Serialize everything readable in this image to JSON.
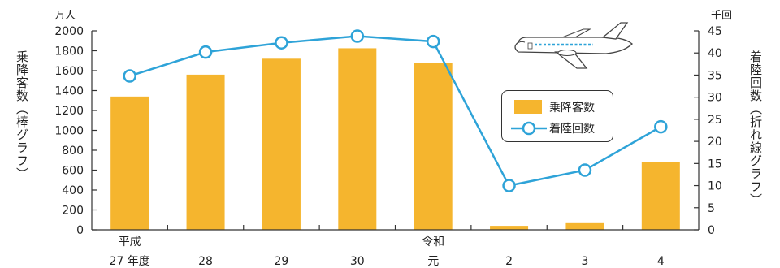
{
  "chart_data": {
    "type": "bar+line",
    "categories": [
      [
        "平成",
        "27 年度"
      ],
      [
        "",
        "28"
      ],
      [
        "",
        "29"
      ],
      [
        "",
        "30"
      ],
      [
        "令和",
        "元"
      ],
      [
        "",
        "2"
      ],
      [
        "",
        "3"
      ],
      [
        "",
        "4"
      ]
    ],
    "series": [
      {
        "name": "乗降客数",
        "type": "bar",
        "axis": "left",
        "values": [
          1340,
          1560,
          1720,
          1825,
          1680,
          40,
          75,
          680
        ]
      },
      {
        "name": "着陸回数",
        "type": "line",
        "axis": "right",
        "values": [
          34.8,
          40.2,
          42.3,
          43.8,
          42.6,
          10.0,
          13.5,
          23.3
        ]
      }
    ],
    "left_axis": {
      "unit": "万人",
      "label": "乗降客数（棒グラフ）",
      "ylim": [
        0,
        2000
      ],
      "ticks": [
        0,
        200,
        400,
        600,
        800,
        1000,
        1200,
        1400,
        1600,
        1800,
        2000
      ]
    },
    "right_axis": {
      "unit": "千回",
      "label": "着陸回数（折れ線グラフ）",
      "ylim": [
        0,
        45
      ],
      "ticks": [
        0,
        5,
        10,
        15,
        20,
        25,
        30,
        35,
        40,
        45
      ]
    },
    "legend_position": "right",
    "grid": false,
    "colors": {
      "bar": "#F5B52E",
      "line": "#2EA3D8",
      "axis": "#333333"
    }
  },
  "icons": {
    "decoration": "airplane-icon"
  }
}
